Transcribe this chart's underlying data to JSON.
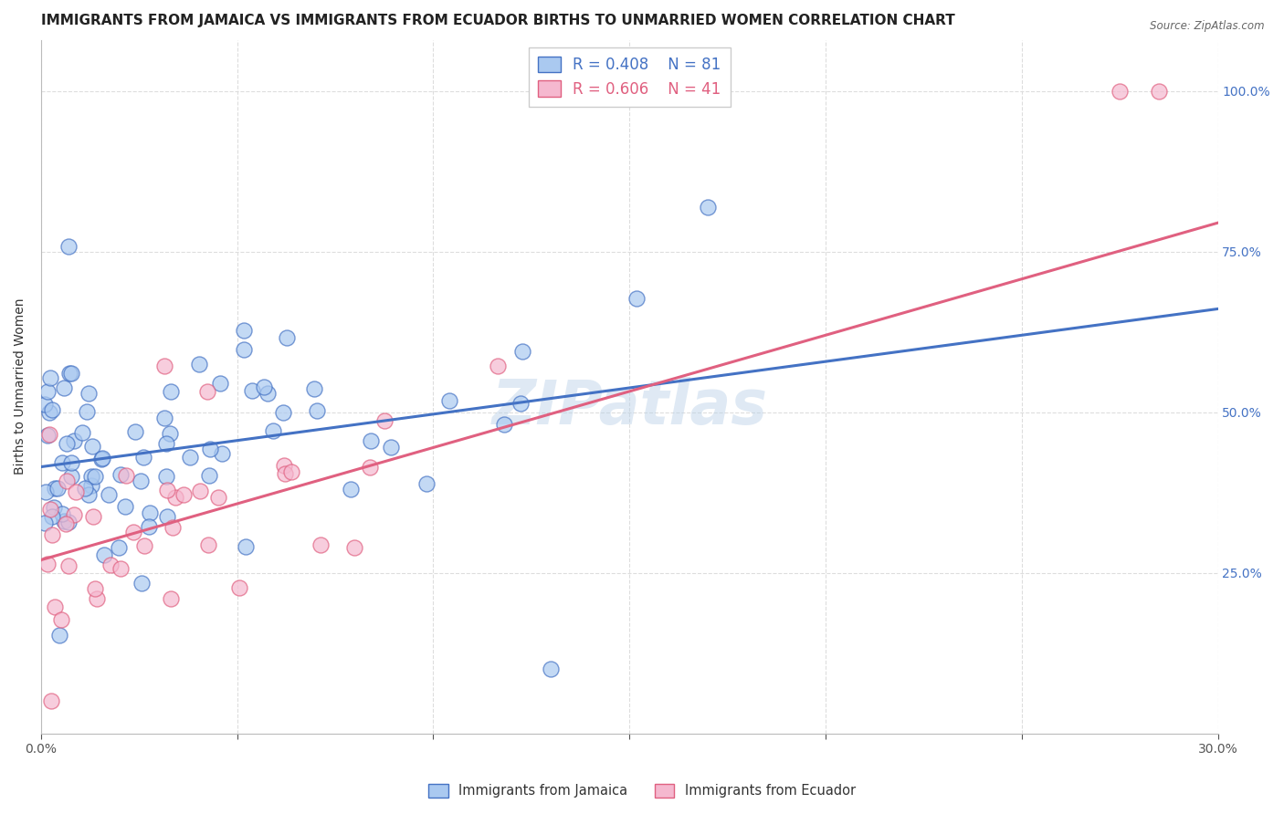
{
  "title": "IMMIGRANTS FROM JAMAICA VS IMMIGRANTS FROM ECUADOR BIRTHS TO UNMARRIED WOMEN CORRELATION CHART",
  "source": "Source: ZipAtlas.com",
  "ylabel": "Births to Unmarried Women",
  "x_min": 0.0,
  "x_max": 0.3,
  "y_min": 0.0,
  "y_max": 1.08,
  "x_ticks": [
    0.0,
    0.05,
    0.1,
    0.15,
    0.2,
    0.25,
    0.3
  ],
  "x_tick_labels": [
    "0.0%",
    "",
    "",
    "",
    "",
    "",
    "30.0%"
  ],
  "y_ticks": [
    0.25,
    0.5,
    0.75,
    1.0
  ],
  "y_tick_labels": [
    "25.0%",
    "50.0%",
    "75.0%",
    "100.0%"
  ],
  "jamaica_color": "#aac9f0",
  "ecuador_color": "#f5b8cf",
  "jamaica_line_color": "#4472C4",
  "ecuador_line_color": "#E06080",
  "jamaica_R": 0.408,
  "jamaica_N": 81,
  "ecuador_R": 0.606,
  "ecuador_N": 41,
  "watermark": "ZIPatlas",
  "jamaica_intercept": 0.415,
  "jamaica_slope": 0.82,
  "ecuador_intercept": 0.27,
  "ecuador_slope": 1.75,
  "background_color": "#ffffff",
  "grid_color": "#dddddd",
  "title_fontsize": 11,
  "axis_label_fontsize": 10,
  "tick_fontsize": 10,
  "legend_fontsize": 12
}
